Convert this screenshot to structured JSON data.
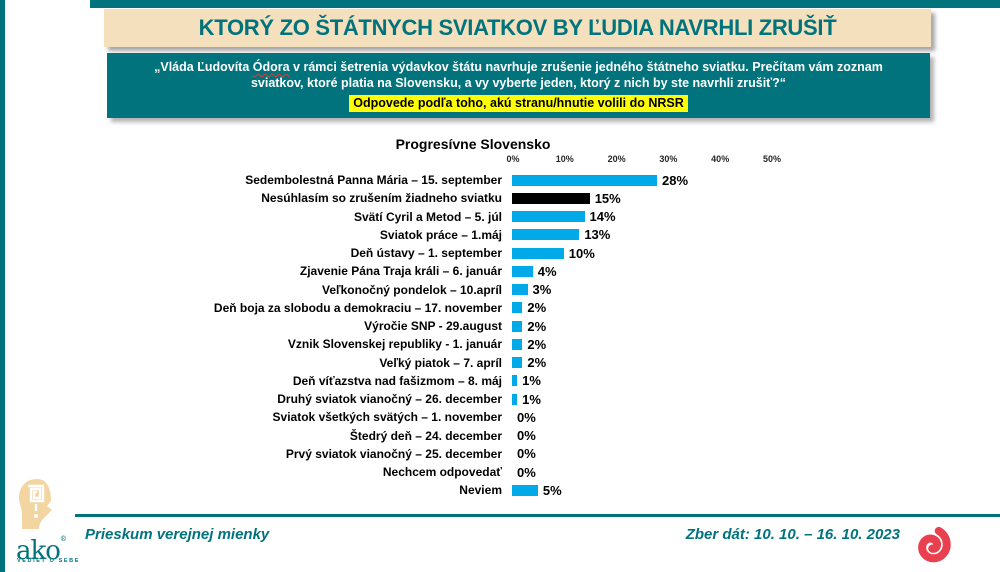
{
  "colors": {
    "teal": "#00737C",
    "cream": "#F5E0BE",
    "bar_blue": "#00A9E8",
    "bar_black": "#000000",
    "highlight_yellow": "#FFFF00",
    "logo_red": "#E8404F",
    "logo_cream": "#F3D5A1"
  },
  "title": "KTORÝ ZO ŠTÁTNYCH SVIATKOV BY ĽUDIA NAVRHLI ZRUŠIŤ",
  "question": {
    "line1_pre": "„Vláda Ľudovíta ",
    "line1_name": "Ódora",
    "line1_post": " v rámci šetrenia výdavkov štátu navrhuje zrušenie jedného štátneho sviatku. Prečítam vám zoznam",
    "line2": "sviatkov,  ktoré platia na Slovensku, a vy vyberte jeden,  ktorý z nich by ste navrhli zrušiť?“",
    "highlight": "Odpovede podľa toho, akú stranu/hnutie volili do NRSR"
  },
  "chart_data": {
    "type": "bar",
    "orientation": "horizontal",
    "title": "Progresívne Slovensko",
    "xlim": [
      0,
      50
    ],
    "axis_ticks": [
      "0%",
      "10%",
      "20%",
      "30%",
      "40%",
      "50%"
    ],
    "grid": false,
    "legend": false,
    "categories": [
      "Sedembolestná Panna Mária – 15. september",
      "Nesúhlasím so zrušením žiadneho sviatku",
      "Svätí Cyril a Metod – 5. júl",
      "Sviatok práce – 1.máj",
      "Deň ústavy – 1. september",
      "Zjavenie Pána Traja králi – 6. január",
      "Veľkonočný pondelok – 10.apríl",
      "Deň boja za slobodu a demokraciu – 17. november",
      "Výročie SNP - 29.august",
      "Vznik Slovenskej republiky - 1. január",
      "Veľký piatok – 7. apríl",
      "Deň víťazstva nad fašizmom – 8. máj",
      "Druhý sviatok vianočný – 26. december",
      "Sviatok všetkých svätých – 1. november",
      "Štedrý deň – 24. december",
      "Prvý sviatok vianočný – 25. december",
      "Nechcem odpovedať",
      "Neviem"
    ],
    "values": [
      28,
      15,
      14,
      13,
      10,
      4,
      3,
      2,
      2,
      2,
      2,
      1,
      1,
      0,
      0,
      0,
      0,
      5
    ],
    "value_labels": [
      "28%",
      "15%",
      "14%",
      "13%",
      "10%",
      "4%",
      "3%",
      "2%",
      "2%",
      "2%",
      "2%",
      "1%",
      "1%",
      "0%",
      "0%",
      "0%",
      "0%",
      "5%"
    ],
    "bar_color": "#00A9E8",
    "highlight_bar": {
      "index": 1,
      "color": "#000000"
    }
  },
  "footer": {
    "left": "Prieskum verejnej mienky",
    "right": "Zber dát: 10. 10. – 16. 10. 2023",
    "logo_word": "ako",
    "logo_reg": "®",
    "logo_sub": "VEDIEŤ O SEBE"
  }
}
